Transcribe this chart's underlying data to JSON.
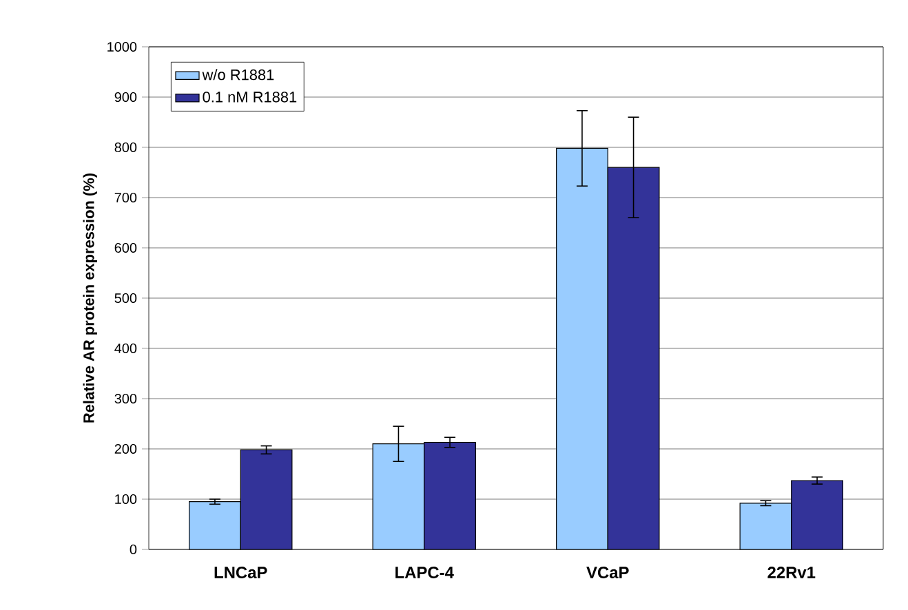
{
  "chart_data": {
    "type": "bar",
    "ylabel": "Relative AR protein expression (%)",
    "categories": [
      "LNCaP",
      "LAPC-4",
      "VCaP",
      "22Rv1"
    ],
    "series": [
      {
        "name": "w/o R1881",
        "color": "#99ccff",
        "values": [
          95,
          210,
          798,
          92
        ],
        "errors": [
          5,
          35,
          75,
          5
        ]
      },
      {
        "name": "0.1 nM R1881",
        "color": "#333399",
        "values": [
          198,
          213,
          760,
          137
        ],
        "errors": [
          8,
          10,
          100,
          7
        ]
      }
    ],
    "ylim": [
      0,
      1000
    ],
    "yticks": [
      0,
      100,
      200,
      300,
      400,
      500,
      600,
      700,
      800,
      900,
      1000
    ],
    "grid": "y",
    "legend": "top left"
  }
}
